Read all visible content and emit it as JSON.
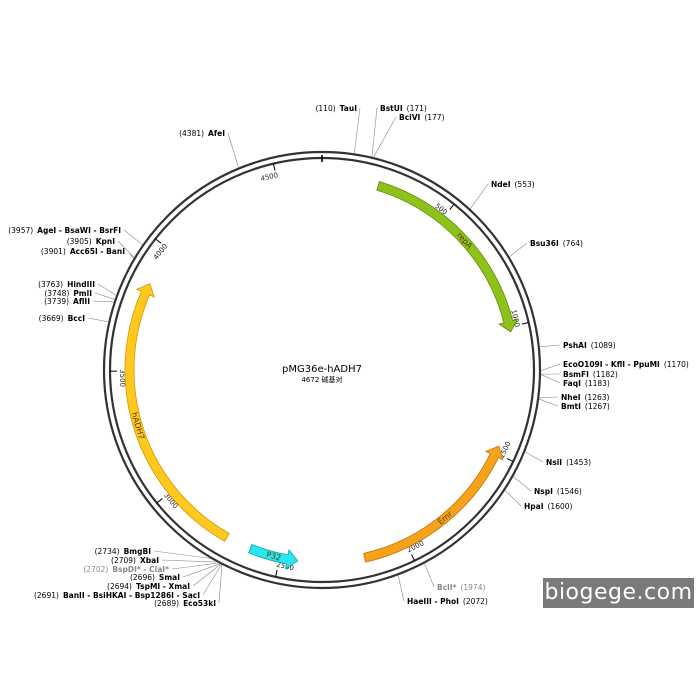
{
  "plasmid": {
    "name": "pMG36e-hADH7",
    "length_text": "4672 碱基对",
    "total_bp": 4672
  },
  "ticks": [
    {
      "pos": 500,
      "label": "500"
    },
    {
      "pos": 1000,
      "label": "1000"
    },
    {
      "pos": 1500,
      "label": "1500"
    },
    {
      "pos": 2000,
      "label": "2000"
    },
    {
      "pos": 2500,
      "label": "2500"
    },
    {
      "pos": 3000,
      "label": "3000"
    },
    {
      "pos": 3500,
      "label": "3500"
    },
    {
      "pos": 4000,
      "label": "4000"
    },
    {
      "pos": 4500,
      "label": "4500"
    }
  ],
  "features": [
    {
      "name": "repA",
      "start": 220,
      "end": 1020,
      "direction": "cw",
      "color": "#8ec21b",
      "stroke": "#5f8a0a"
    },
    {
      "name": "Emr",
      "start": 1470,
      "end": 2170,
      "direction": "ccw",
      "color": "#f7a21b",
      "stroke": "#c57400"
    },
    {
      "name": "P32",
      "start": 2430,
      "end": 2620,
      "direction": "ccw",
      "color": "#29e6f0",
      "stroke": "#0aa5ad"
    },
    {
      "name": "hADH7",
      "start": 2720,
      "end": 3850,
      "direction": "cw",
      "color": "#ffc81e",
      "stroke": "#d29600"
    }
  ],
  "sites": [
    {
      "pos": 110,
      "num": "(110)",
      "name": "TauI",
      "side": "left",
      "dim": false
    },
    {
      "pos": 171,
      "num": "(171)",
      "name": "BstUI",
      "side": "right",
      "dim": false
    },
    {
      "pos": 177,
      "num": "(177)",
      "name": "BciVI",
      "side": "right",
      "dim": false
    },
    {
      "pos": 553,
      "num": "(553)",
      "name": "NdeI",
      "side": "right",
      "dim": false
    },
    {
      "pos": 764,
      "num": "(764)",
      "name": "Bsu36I",
      "side": "right",
      "dim": false
    },
    {
      "pos": 1089,
      "num": "(1089)",
      "name": "PshAI",
      "side": "right",
      "dim": false
    },
    {
      "pos": 1170,
      "num": "(1170)",
      "name": "EcoO109I - KflI - PpuMI",
      "side": "right",
      "dim": false
    },
    {
      "pos": 1182,
      "num": "(1182)",
      "name": "BsmFI",
      "side": "right",
      "dim": false
    },
    {
      "pos": 1183,
      "num": "(1183)",
      "name": "FaqI",
      "side": "right",
      "dim": false
    },
    {
      "pos": 1263,
      "num": "(1263)",
      "name": "NheI",
      "side": "right",
      "dim": false
    },
    {
      "pos": 1267,
      "num": "(1267)",
      "name": "BmtI",
      "side": "right",
      "dim": false
    },
    {
      "pos": 1453,
      "num": "(1453)",
      "name": "NsiI",
      "side": "right",
      "dim": false
    },
    {
      "pos": 1546,
      "num": "(1546)",
      "name": "NspI",
      "side": "right",
      "dim": false
    },
    {
      "pos": 1600,
      "num": "(1600)",
      "name": "HpaI",
      "side": "right",
      "dim": false
    },
    {
      "pos": 1974,
      "num": "(1974)",
      "name": "BclI*",
      "side": "right",
      "dim": true
    },
    {
      "pos": 2072,
      "num": "(2072)",
      "name": "HaeIII - PhoI",
      "side": "right",
      "dim": false
    },
    {
      "pos": 2734,
      "num": "(2734)",
      "name": "BmgBI",
      "side": "left",
      "dim": false
    },
    {
      "pos": 2709,
      "num": "(2709)",
      "name": "XbaI",
      "side": "left",
      "dim": false
    },
    {
      "pos": 2702,
      "num": "(2702)",
      "name": "BspDI* - ClaI*",
      "side": "left",
      "dim": true
    },
    {
      "pos": 2696,
      "num": "(2696)",
      "name": "SmaI",
      "side": "left",
      "dim": false
    },
    {
      "pos": 2694,
      "num": "(2694)",
      "name": "TspMI - XmaI",
      "side": "left",
      "dim": false
    },
    {
      "pos": 2691,
      "num": "(2691)",
      "name": "BanII - BsiHKAI - Bsp1286I - SacI",
      "side": "left",
      "dim": false
    },
    {
      "pos": 2689,
      "num": "(2689)",
      "name": "Eco53kI",
      "side": "left",
      "dim": false
    },
    {
      "pos": 3669,
      "num": "(3669)",
      "name": "BccI",
      "side": "left",
      "dim": false
    },
    {
      "pos": 3739,
      "num": "(3739)",
      "name": "AflII",
      "side": "left",
      "dim": false
    },
    {
      "pos": 3748,
      "num": "(3748)",
      "name": "PmlI",
      "side": "left",
      "dim": false
    },
    {
      "pos": 3763,
      "num": "(3763)",
      "name": "HindIII",
      "side": "left",
      "dim": false
    },
    {
      "pos": 3901,
      "num": "(3901)",
      "name": "Acc65I - BanI",
      "side": "left",
      "dim": false
    },
    {
      "pos": 3905,
      "num": "(3905)",
      "name": "KpnI",
      "side": "left",
      "dim": false
    },
    {
      "pos": 3957,
      "num": "(3957)",
      "name": "AgeI - BsaWI - BsrFI",
      "side": "left",
      "dim": false
    },
    {
      "pos": 4381,
      "num": "(4381)",
      "name": "AfeI",
      "side": "left",
      "dim": false
    }
  ],
  "watermark": "biogege.com"
}
